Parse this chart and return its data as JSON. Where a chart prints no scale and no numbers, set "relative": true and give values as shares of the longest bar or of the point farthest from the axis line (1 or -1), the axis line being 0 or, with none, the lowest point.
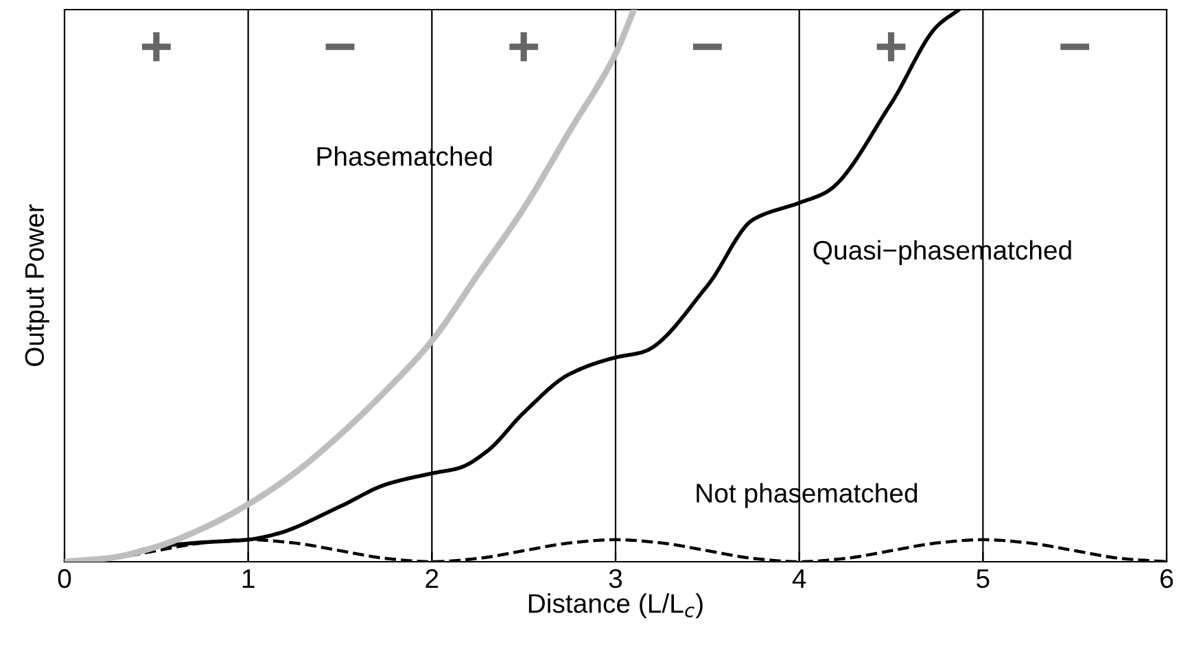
{
  "chart_data": {
    "type": "line",
    "relative": true,
    "xlabel": "Distance (L/L$_{c}$)",
    "ylabel": "Output Power",
    "xlim": [
      0,
      6
    ],
    "xticks": [
      0,
      1,
      2,
      3,
      4,
      5,
      6
    ],
    "grid": false,
    "legend": false,
    "marker": "none",
    "ref_lines": [
      {
        "axis": "x",
        "value": 1,
        "color": "#000000"
      },
      {
        "axis": "x",
        "value": 2,
        "color": "#000000"
      },
      {
        "axis": "x",
        "value": 3,
        "color": "#000000"
      },
      {
        "axis": "x",
        "value": 4,
        "color": "#000000"
      },
      {
        "axis": "x",
        "value": 5,
        "color": "#000000"
      }
    ],
    "annotations": [
      "+",
      "−",
      "+",
      "−",
      "+",
      "−"
    ],
    "series": [
      {
        "name": "Phasematched",
        "color": "#bebebe",
        "line_style": "solid",
        "x": [
          0,
          0.25,
          0.5,
          0.75,
          1,
          1.25,
          1.5,
          1.75,
          2,
          2.25,
          2.5,
          2.75,
          3,
          3.1
        ],
        "values": [
          0,
          0.007,
          0.027,
          0.06,
          0.104,
          0.16,
          0.23,
          0.31,
          0.4,
          0.52,
          0.64,
          0.78,
          0.92,
          1.0
        ]
      },
      {
        "name": "Quasi−phasematched",
        "color": "#000000",
        "line_style": "solid",
        "x": [
          0,
          0.25,
          0.5,
          0.75,
          1,
          1.15,
          1.5,
          1.75,
          2,
          2.15,
          2.3,
          2.5,
          2.75,
          3,
          3.15,
          3.5,
          3.75,
          4,
          4.15,
          4.5,
          4.75,
          4.87
        ],
        "values": [
          0,
          0.007,
          0.027,
          0.035,
          0.04,
          0.05,
          0.1,
          0.14,
          0.16,
          0.17,
          0.2,
          0.27,
          0.34,
          0.37,
          0.38,
          0.5,
          0.62,
          0.65,
          0.67,
          0.83,
          0.97,
          1.0
        ]
      },
      {
        "name": "Not phasematched",
        "color": "#000000",
        "line_style": "dashed",
        "x": [
          0,
          0.25,
          0.5,
          0.75,
          1,
          1.25,
          1.5,
          1.75,
          2,
          2.25,
          2.5,
          2.75,
          3,
          3.25,
          3.5,
          3.75,
          4,
          4.25,
          4.5,
          4.75,
          5,
          5.25,
          5.5,
          5.75,
          6
        ],
        "values": [
          0,
          0.006,
          0.02,
          0.034,
          0.04,
          0.034,
          0.02,
          0.006,
          0,
          0.006,
          0.02,
          0.034,
          0.04,
          0.034,
          0.02,
          0.006,
          0,
          0.006,
          0.02,
          0.034,
          0.04,
          0.034,
          0.02,
          0.006,
          0
        ]
      }
    ]
  }
}
